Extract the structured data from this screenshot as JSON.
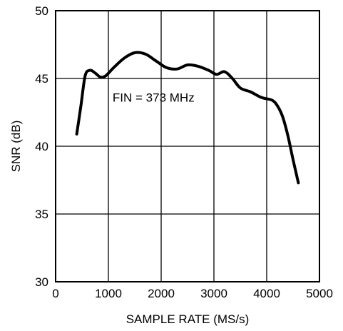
{
  "chart_data": {
    "type": "line",
    "title": "",
    "xlabel": "SAMPLE RATE (MS/s)",
    "ylabel": "SNR (dB)",
    "xlim": [
      0,
      5000
    ],
    "ylim": [
      30,
      50
    ],
    "xticks": [
      0,
      1000,
      2000,
      3000,
      4000,
      5000
    ],
    "yticks": [
      30,
      35,
      40,
      45,
      50
    ],
    "xtick_labels": [
      "0",
      "1000",
      "2000",
      "3000",
      "4000",
      "5000"
    ],
    "ytick_labels": [
      "30",
      "35",
      "40",
      "45",
      "50"
    ],
    "grid": true,
    "annotations": [
      {
        "text": "FIN = 373 MHz",
        "x": 1080,
        "y": 43.3
      }
    ],
    "series": [
      {
        "color": "#000000",
        "x": [
          400,
          480,
          560,
          650,
          750,
          850,
          950,
          1100,
          1300,
          1500,
          1700,
          1900,
          2100,
          2300,
          2500,
          2700,
          2900,
          3050,
          3200,
          3350,
          3500,
          3700,
          3900,
          4100,
          4200,
          4300,
          4400,
          4500,
          4600
        ],
        "y": [
          40.9,
          43.0,
          45.2,
          45.6,
          45.4,
          45.1,
          45.2,
          45.8,
          46.5,
          46.9,
          46.8,
          46.3,
          45.8,
          45.7,
          46.0,
          45.9,
          45.6,
          45.3,
          45.5,
          45.0,
          44.3,
          44.0,
          43.6,
          43.4,
          43.0,
          42.2,
          40.8,
          39.0,
          37.3
        ]
      }
    ]
  }
}
